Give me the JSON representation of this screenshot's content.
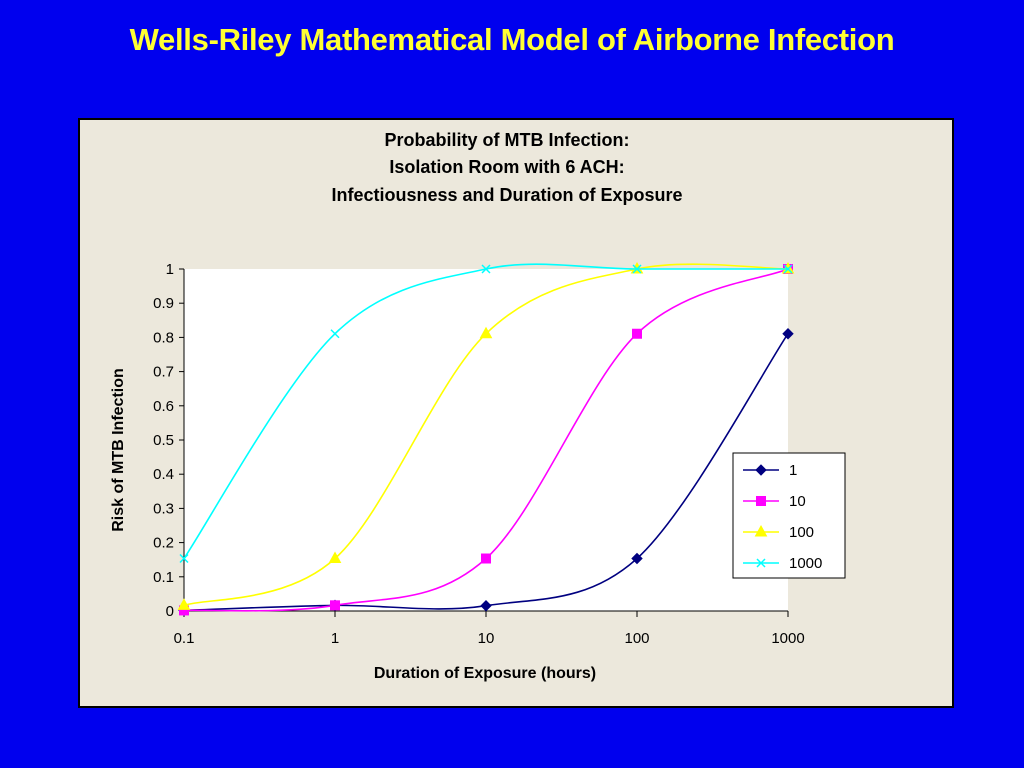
{
  "slide": {
    "title": "Wells-Riley Mathematical Model of Airborne Infection"
  },
  "colors": {
    "background": "#0000ee",
    "title": "#ffff33",
    "panel": "#ece8dc",
    "plot_area": "#ffffff"
  },
  "chart_data": {
    "type": "line",
    "title_lines": [
      "Probability of MTB Infection:",
      "Isolation Room with 6 ACH:",
      "Infectiousness and Duration of Exposure"
    ],
    "xlabel": "Duration of Exposure (hours)",
    "ylabel": "Risk of MTB Infection",
    "xscale": "log",
    "xlim": [
      0.1,
      1000
    ],
    "ylim": [
      0,
      1
    ],
    "x_ticks": [
      0.1,
      1,
      10,
      100,
      1000
    ],
    "x_tick_labels": [
      "0.1",
      "1",
      "10",
      "100",
      "1000"
    ],
    "y_ticks": [
      0,
      0.1,
      0.2,
      0.3,
      0.4,
      0.5,
      0.6,
      0.7,
      0.8,
      0.9,
      1
    ],
    "y_tick_labels": [
      "0",
      "0.1",
      "0.2",
      "0.3",
      "0.4",
      "0.5",
      "0.6",
      "0.7",
      "0.8",
      "0.9",
      "1"
    ],
    "grid": false,
    "smooth": true,
    "legend_position": "right",
    "x": [
      0.1,
      1,
      10,
      100,
      1000
    ],
    "series": [
      {
        "name": "1",
        "values": [
          0.0017,
          0.0165,
          0.0154,
          0.1535,
          0.8107
        ],
        "color": "#000080",
        "marker": "diamond"
      },
      {
        "name": "10",
        "values": [
          0.0017,
          0.0166,
          0.1535,
          0.8107,
          1.0
        ],
        "color": "#ff00ff",
        "marker": "square"
      },
      {
        "name": "100",
        "values": [
          0.0166,
          0.1535,
          0.8107,
          1.0,
          1.0
        ],
        "color": "#ffff00",
        "marker": "triangle"
      },
      {
        "name": "1000",
        "values": [
          0.1535,
          0.8107,
          1.0,
          1.0,
          1.0
        ],
        "color": "#00ffff",
        "marker": "x"
      }
    ]
  }
}
